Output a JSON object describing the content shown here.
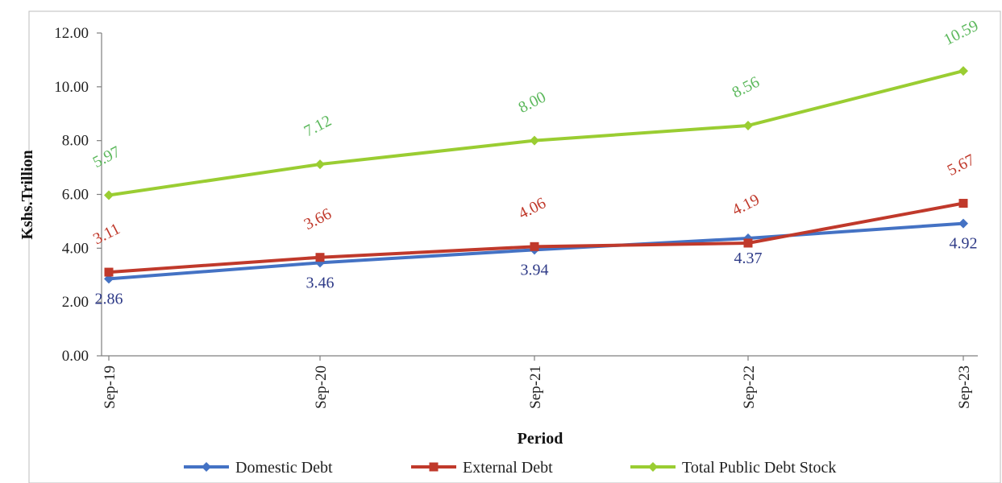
{
  "chart_data": {
    "type": "line",
    "categories": [
      "Sep-19",
      "Sep-20",
      "Sep-21",
      "Sep-22",
      "Sep-23"
    ],
    "ylabel": "Kshs.Trillion",
    "xlabel": "Period",
    "ylim": [
      0,
      12
    ],
    "yticks": [
      "0.00",
      "2.00",
      "4.00",
      "6.00",
      "8.00",
      "10.00",
      "12.00"
    ],
    "grid": false,
    "legend_position": "bottom",
    "series": [
      {
        "name": "Domestic Debt",
        "color": "#4472c4",
        "label_color": "#2e3a87",
        "marker": "diamond",
        "label_side": "below",
        "values": [
          2.86,
          3.46,
          3.94,
          4.37,
          4.92
        ],
        "labels": [
          "2.86",
          "3.46",
          "3.94",
          "4.37",
          "4.92"
        ]
      },
      {
        "name": "External Debt",
        "color": "#c0392b",
        "label_color": "#c0392b",
        "marker": "square",
        "label_side": "above",
        "values": [
          3.11,
          3.66,
          4.06,
          4.19,
          5.67
        ],
        "labels": [
          "3.11",
          "3.66",
          "4.06",
          "4.19",
          "5.67"
        ]
      },
      {
        "name": "Total Public Debt Stock",
        "color": "#9acd32",
        "label_color": "#5cb85c",
        "marker": "diamond",
        "label_side": "above",
        "values": [
          5.97,
          7.12,
          8.0,
          8.56,
          10.59
        ],
        "labels": [
          "5.97",
          "7.12",
          "8.00",
          "8.56",
          "10.59"
        ]
      }
    ]
  }
}
